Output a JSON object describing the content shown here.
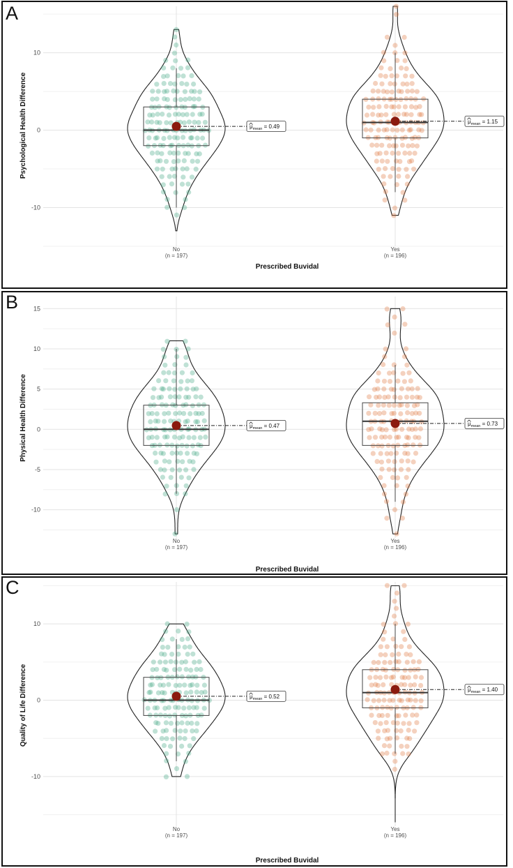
{
  "colors": {
    "no": "#48a886",
    "yes": "#e07a45",
    "mean": "#8b1a0e",
    "outline": "#333333"
  },
  "chart_data": [
    {
      "panel": "A",
      "type": "violin-box-scatter",
      "ylabel": "Psychological Health Difference",
      "xlabel": "Prescribed Buvidal",
      "ylim": [
        -15,
        16
      ],
      "yticks": [
        -10,
        0,
        10
      ],
      "groups": [
        {
          "name": "No",
          "n": "(n = 197)",
          "min": -13,
          "max": 13,
          "q1": -2,
          "median": 0,
          "q3": 3,
          "whisker_low": -10,
          "whisker_high": 8,
          "mean": 0.49,
          "mean_label": "= 0.49",
          "points": [
            13,
            12,
            11,
            10,
            9,
            9,
            9,
            8,
            8,
            8,
            8,
            7,
            7,
            7,
            7,
            7,
            6,
            6,
            6,
            6,
            6,
            6,
            6,
            5,
            5,
            5,
            5,
            5,
            5,
            5,
            5,
            5,
            5,
            4,
            4,
            4,
            4,
            4,
            4,
            4,
            4,
            4,
            4,
            3,
            3,
            3,
            3,
            3,
            3,
            3,
            3,
            3,
            3,
            3,
            2,
            2,
            2,
            2,
            2,
            2,
            2,
            2,
            2,
            2,
            2,
            2,
            1,
            1,
            1,
            1,
            1,
            1,
            1,
            1,
            1,
            1,
            1,
            1,
            1,
            0,
            0,
            0,
            0,
            0,
            0,
            0,
            0,
            0,
            0,
            0,
            0,
            0,
            0,
            0,
            -1,
            -1,
            -1,
            -1,
            -1,
            -1,
            -1,
            -1,
            -1,
            -1,
            -1,
            -1,
            -2,
            -2,
            -2,
            -2,
            -2,
            -2,
            -2,
            -2,
            -2,
            -2,
            -2,
            -2,
            -3,
            -3,
            -3,
            -3,
            -3,
            -3,
            -3,
            -3,
            -3,
            -3,
            -4,
            -4,
            -4,
            -4,
            -4,
            -4,
            -4,
            -4,
            -5,
            -5,
            -5,
            -5,
            -5,
            -5,
            -5,
            -6,
            -6,
            -6,
            -6,
            -6,
            -7,
            -7,
            -7,
            -7,
            -8,
            -8,
            -8,
            -9,
            -9,
            -10,
            -10,
            -11
          ]
        },
        {
          "name": "Yes",
          "n": "(n = 196)",
          "min": -11,
          "max": 16,
          "q1": -1,
          "median": 1,
          "q3": 4,
          "whisker_low": -8,
          "whisker_high": 10,
          "mean": 1.15,
          "mean_label": "= 1.15",
          "points": [
            16,
            15,
            12,
            12,
            11,
            10,
            10,
            10,
            9,
            9,
            9,
            8,
            8,
            8,
            8,
            7,
            7,
            7,
            7,
            7,
            7,
            6,
            6,
            6,
            6,
            6,
            6,
            6,
            5,
            5,
            5,
            5,
            5,
            5,
            5,
            5,
            5,
            5,
            4,
            4,
            4,
            4,
            4,
            4,
            4,
            4,
            4,
            4,
            4,
            4,
            3,
            3,
            3,
            3,
            3,
            3,
            3,
            3,
            3,
            3,
            3,
            2,
            2,
            2,
            2,
            2,
            2,
            2,
            2,
            2,
            2,
            2,
            2,
            1,
            1,
            1,
            1,
            1,
            1,
            1,
            1,
            1,
            1,
            1,
            1,
            1,
            0,
            0,
            0,
            0,
            0,
            0,
            0,
            0,
            0,
            0,
            0,
            0,
            -1,
            -1,
            -1,
            -1,
            -1,
            -1,
            -1,
            -1,
            -1,
            -1,
            -1,
            -2,
            -2,
            -2,
            -2,
            -2,
            -2,
            -2,
            -2,
            -2,
            -2,
            -3,
            -3,
            -3,
            -3,
            -3,
            -3,
            -3,
            -3,
            -4,
            -4,
            -4,
            -4,
            -4,
            -4,
            -4,
            -5,
            -5,
            -5,
            -5,
            -5,
            -5,
            -6,
            -6,
            -6,
            -6,
            -7,
            -7,
            -7,
            -8,
            -8,
            -9,
            -9,
            -10,
            -11
          ]
        }
      ]
    },
    {
      "panel": "B",
      "type": "violin-box-scatter",
      "ylabel": "Physical Health Difference",
      "xlabel": "Prescribed Buvidal",
      "ylim": [
        -13.5,
        16.5
      ],
      "yticks": [
        -10,
        -5,
        0,
        5,
        10,
        15
      ],
      "groups": [
        {
          "name": "No",
          "n": "(n = 197)",
          "min": -13,
          "max": 11,
          "q1": -2,
          "median": 0,
          "q3": 3,
          "whisker_low": -8,
          "whisker_high": 10,
          "mean": 0.47,
          "mean_label": "= 0.47",
          "points": [
            11,
            11,
            10,
            10,
            10,
            9,
            9,
            9,
            8,
            8,
            8,
            7,
            7,
            7,
            7,
            7,
            6,
            6,
            6,
            6,
            6,
            6,
            5,
            5,
            5,
            5,
            5,
            5,
            5,
            5,
            5,
            4,
            4,
            4,
            4,
            4,
            4,
            4,
            4,
            4,
            4,
            3,
            3,
            3,
            3,
            3,
            3,
            3,
            3,
            3,
            3,
            3,
            2,
            2,
            2,
            2,
            2,
            2,
            2,
            2,
            2,
            2,
            2,
            2,
            1,
            1,
            1,
            1,
            1,
            1,
            1,
            1,
            1,
            1,
            1,
            1,
            0,
            0,
            0,
            0,
            0,
            0,
            0,
            0,
            0,
            0,
            0,
            0,
            0,
            -1,
            -1,
            -1,
            -1,
            -1,
            -1,
            -1,
            -1,
            -1,
            -1,
            -1,
            -1,
            -2,
            -2,
            -2,
            -2,
            -2,
            -2,
            -2,
            -2,
            -2,
            -2,
            -2,
            -3,
            -3,
            -3,
            -3,
            -3,
            -3,
            -3,
            -3,
            -3,
            -4,
            -4,
            -4,
            -4,
            -4,
            -4,
            -4,
            -5,
            -5,
            -5,
            -5,
            -5,
            -5,
            -6,
            -6,
            -6,
            -6,
            -7,
            -7,
            -7,
            -8,
            -8,
            -8,
            -10,
            -13
          ]
        },
        {
          "name": "Yes",
          "n": "(n = 196)",
          "min": -13,
          "max": 15,
          "q1": -2,
          "median": 1,
          "q3": 3.3,
          "whisker_low": -9,
          "whisker_high": 8,
          "mean": 0.73,
          "mean_label": "= 0.73",
          "points": [
            15,
            15,
            14,
            13,
            13,
            12,
            10,
            10,
            9,
            9,
            8,
            8,
            8,
            7,
            7,
            7,
            7,
            7,
            6,
            6,
            6,
            6,
            6,
            6,
            5,
            5,
            5,
            5,
            5,
            5,
            5,
            5,
            5,
            4,
            4,
            4,
            4,
            4,
            4,
            4,
            4,
            4,
            4,
            4,
            3,
            3,
            3,
            3,
            3,
            3,
            3,
            3,
            3,
            3,
            2,
            2,
            2,
            2,
            2,
            2,
            2,
            2,
            2,
            2,
            2,
            1,
            1,
            1,
            1,
            1,
            1,
            1,
            1,
            1,
            1,
            1,
            0,
            0,
            0,
            0,
            0,
            0,
            0,
            0,
            0,
            0,
            0,
            0,
            -1,
            -1,
            -1,
            -1,
            -1,
            -1,
            -1,
            -1,
            -1,
            -1,
            -1,
            -2,
            -2,
            -2,
            -2,
            -2,
            -2,
            -2,
            -2,
            -2,
            -2,
            -3,
            -3,
            -3,
            -3,
            -3,
            -3,
            -3,
            -3,
            -4,
            -4,
            -4,
            -4,
            -4,
            -4,
            -4,
            -5,
            -5,
            -5,
            -5,
            -5,
            -6,
            -6,
            -6,
            -6,
            -7,
            -7,
            -7,
            -8,
            -8,
            -9,
            -9,
            -10,
            -11,
            -11,
            -13
          ]
        }
      ]
    },
    {
      "panel": "C",
      "type": "violin-box-scatter",
      "ylabel": "Quality of Life Difference",
      "xlabel": "Prescribed Buvidal",
      "ylim": [
        -16.5,
        15.5
      ],
      "yticks": [
        -10,
        0,
        10
      ],
      "groups": [
        {
          "name": "No",
          "n": "(n = 197)",
          "min": -10,
          "max": 10,
          "q1": -2,
          "median": 0,
          "q3": 3,
          "whisker_low": -8,
          "whisker_high": 8,
          "mean": 0.52,
          "mean_label": "= 0.52",
          "points": [
            10,
            10,
            9,
            9,
            9,
            8,
            8,
            8,
            8,
            7,
            7,
            7,
            7,
            7,
            6,
            6,
            6,
            6,
            6,
            6,
            5,
            5,
            5,
            5,
            5,
            5,
            5,
            5,
            5,
            4,
            4,
            4,
            4,
            4,
            4,
            4,
            4,
            4,
            4,
            3,
            3,
            3,
            3,
            3,
            3,
            3,
            3,
            3,
            3,
            3,
            2,
            2,
            2,
            2,
            2,
            2,
            2,
            2,
            2,
            2,
            2,
            2,
            1,
            1,
            1,
            1,
            1,
            1,
            1,
            1,
            1,
            1,
            1,
            1,
            1,
            0,
            0,
            0,
            0,
            0,
            0,
            0,
            0,
            0,
            0,
            0,
            0,
            0,
            0,
            -1,
            -1,
            -1,
            -1,
            -1,
            -1,
            -1,
            -1,
            -1,
            -1,
            -1,
            -1,
            -2,
            -2,
            -2,
            -2,
            -2,
            -2,
            -2,
            -2,
            -2,
            -2,
            -2,
            -3,
            -3,
            -3,
            -3,
            -3,
            -3,
            -3,
            -3,
            -3,
            -4,
            -4,
            -4,
            -4,
            -4,
            -4,
            -4,
            -4,
            -5,
            -5,
            -5,
            -5,
            -5,
            -5,
            -6,
            -6,
            -6,
            -6,
            -7,
            -7,
            -7,
            -8,
            -8,
            -9,
            -10,
            -10
          ]
        },
        {
          "name": "Yes",
          "n": "(n = 196)",
          "min": -16,
          "max": 15,
          "q1": -1,
          "median": 1,
          "q3": 4,
          "whisker_low": -7,
          "whisker_high": 10,
          "mean": 1.4,
          "mean_label": "= 1.40",
          "points": [
            15,
            15,
            14,
            13,
            12,
            11,
            10,
            10,
            10,
            9,
            9,
            8,
            8,
            8,
            7,
            7,
            7,
            7,
            7,
            6,
            6,
            6,
            6,
            6,
            6,
            5,
            5,
            5,
            5,
            5,
            5,
            5,
            5,
            5,
            4,
            4,
            4,
            4,
            4,
            4,
            4,
            4,
            4,
            4,
            3,
            3,
            3,
            3,
            3,
            3,
            3,
            3,
            3,
            3,
            3,
            2,
            2,
            2,
            2,
            2,
            2,
            2,
            2,
            2,
            2,
            2,
            1,
            1,
            1,
            1,
            1,
            1,
            1,
            1,
            1,
            1,
            1,
            0,
            0,
            0,
            0,
            0,
            0,
            0,
            0,
            0,
            0,
            0,
            0,
            -1,
            -1,
            -1,
            -1,
            -1,
            -1,
            -1,
            -1,
            -1,
            -1,
            -2,
            -2,
            -2,
            -2,
            -2,
            -2,
            -2,
            -2,
            -2,
            -3,
            -3,
            -3,
            -3,
            -3,
            -3,
            -3,
            -3,
            -4,
            -4,
            -4,
            -4,
            -4,
            -4,
            -4,
            -5,
            -5,
            -5,
            -5,
            -5,
            -5,
            -6,
            -6,
            -6,
            -6,
            -7,
            -7,
            -7,
            -7,
            -7,
            -8,
            -9
          ]
        }
      ]
    }
  ]
}
